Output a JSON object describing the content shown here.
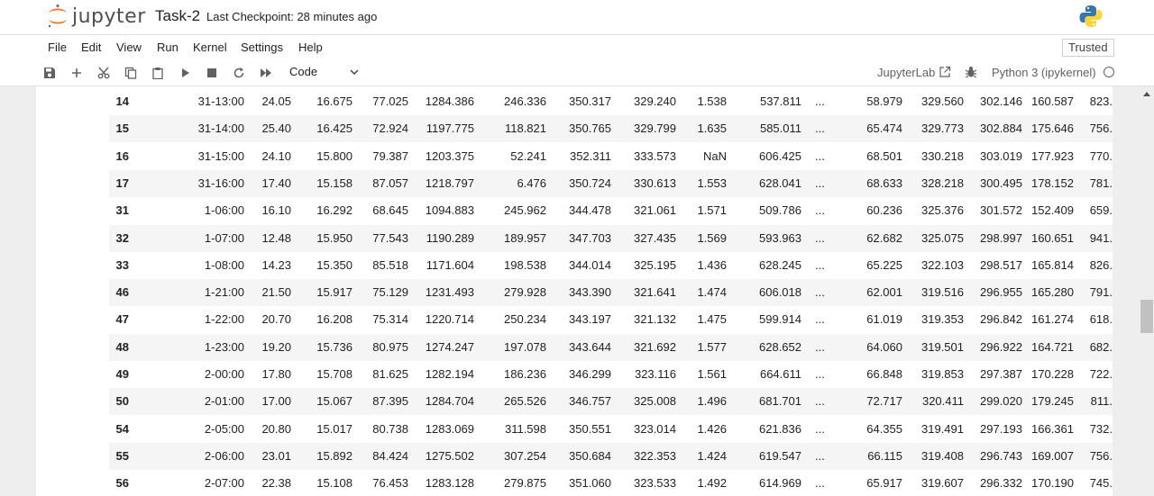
{
  "header": {
    "logo_text": "jupyter",
    "notebook_title": "Task-2",
    "checkpoint": "Last Checkpoint: 28 minutes ago",
    "python_logo_icon": "python-logo-icon"
  },
  "menu": {
    "items": [
      "File",
      "Edit",
      "View",
      "Run",
      "Kernel",
      "Settings",
      "Help"
    ],
    "trusted": "Trusted"
  },
  "toolbar": {
    "icons": [
      "save-icon",
      "add-cell-icon",
      "cut-icon",
      "copy-icon",
      "paste-icon",
      "run-icon",
      "stop-icon",
      "restart-icon",
      "fast-forward-icon"
    ],
    "cell_type": "Code",
    "jupyterlab": "JupyterLab",
    "kernel": "Python 3 (ipykernel)"
  },
  "table": {
    "rows": [
      [
        "14",
        "31-13:00",
        "24.05",
        "16.675",
        "77.025",
        "1284.386",
        "246.336",
        "350.317",
        "329.240",
        "1.538",
        "537.811",
        "...",
        "58.979",
        "329.560",
        "302.146",
        "160.587",
        "823."
      ],
      [
        "15",
        "31-14:00",
        "25.40",
        "16.425",
        "72.924",
        "1197.775",
        "118.821",
        "350.765",
        "329.799",
        "1.635",
        "585.011",
        "...",
        "65.474",
        "329.773",
        "302.884",
        "175.646",
        "756."
      ],
      [
        "16",
        "31-15:00",
        "24.10",
        "15.800",
        "79.387",
        "1203.375",
        "52.241",
        "352.311",
        "333.573",
        "NaN",
        "606.425",
        "...",
        "68.501",
        "330.218",
        "303.019",
        "177.923",
        "770."
      ],
      [
        "17",
        "31-16:00",
        "17.40",
        "15.158",
        "87.057",
        "1218.797",
        "6.476",
        "350.724",
        "330.613",
        "1.553",
        "628.041",
        "...",
        "68.633",
        "328.218",
        "300.495",
        "178.152",
        "781."
      ],
      [
        "31",
        "1-06:00",
        "16.10",
        "16.292",
        "68.645",
        "1094.883",
        "245.962",
        "344.478",
        "321.061",
        "1.571",
        "509.786",
        "...",
        "60.236",
        "325.376",
        "301.572",
        "152.409",
        "659."
      ],
      [
        "32",
        "1-07:00",
        "12.48",
        "15.950",
        "77.543",
        "1190.289",
        "189.957",
        "347.703",
        "327.435",
        "1.569",
        "593.963",
        "...",
        "62.682",
        "325.075",
        "298.997",
        "160.651",
        "941."
      ],
      [
        "33",
        "1-08:00",
        "14.23",
        "15.350",
        "85.518",
        "1171.604",
        "198.538",
        "344.014",
        "325.195",
        "1.436",
        "628.245",
        "...",
        "65.225",
        "322.103",
        "298.517",
        "165.814",
        "826."
      ],
      [
        "46",
        "1-21:00",
        "21.50",
        "15.917",
        "75.129",
        "1231.493",
        "279.928",
        "343.390",
        "321.641",
        "1.474",
        "606.018",
        "...",
        "62.001",
        "319.516",
        "296.955",
        "165.280",
        "791."
      ],
      [
        "47",
        "1-22:00",
        "20.70",
        "16.208",
        "75.314",
        "1220.714",
        "250.234",
        "343.197",
        "321.132",
        "1.475",
        "599.914",
        "...",
        "61.019",
        "319.353",
        "296.842",
        "161.274",
        "618."
      ],
      [
        "48",
        "1-23:00",
        "19.20",
        "15.736",
        "80.975",
        "1274.247",
        "197.078",
        "343.644",
        "321.692",
        "1.577",
        "628.652",
        "...",
        "64.060",
        "319.501",
        "296.922",
        "164.721",
        "682."
      ],
      [
        "49",
        "2-00:00",
        "17.80",
        "15.708",
        "81.625",
        "1282.194",
        "186.236",
        "346.299",
        "323.116",
        "1.561",
        "664.611",
        "...",
        "66.848",
        "319.853",
        "297.387",
        "170.228",
        "722."
      ],
      [
        "50",
        "2-01:00",
        "17.00",
        "15.067",
        "87.395",
        "1284.704",
        "265.526",
        "346.757",
        "325.008",
        "1.496",
        "681.701",
        "...",
        "72.717",
        "320.411",
        "299.020",
        "179.245",
        "811."
      ],
      [
        "54",
        "2-05:00",
        "20.80",
        "15.017",
        "80.738",
        "1283.069",
        "311.598",
        "350.551",
        "323.014",
        "1.426",
        "621.836",
        "...",
        "64.355",
        "319.491",
        "297.193",
        "166.361",
        "732."
      ],
      [
        "55",
        "2-06:00",
        "23.01",
        "15.892",
        "84.424",
        "1275.502",
        "307.254",
        "350.684",
        "322.353",
        "1.424",
        "619.547",
        "...",
        "66.115",
        "319.408",
        "296.743",
        "169.007",
        "756."
      ],
      [
        "56",
        "2-07:00",
        "22.38",
        "15.108",
        "76.453",
        "1283.128",
        "279.875",
        "351.060",
        "323.533",
        "1.492",
        "614.969",
        "...",
        "65.917",
        "319.607",
        "296.332",
        "170.190",
        "745."
      ]
    ]
  }
}
